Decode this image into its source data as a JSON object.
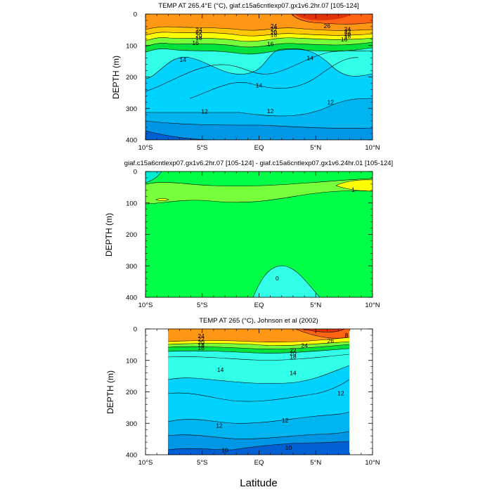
{
  "chart_data": [
    {
      "type": "contour",
      "title": "TEMP AT 265.4°E (°C), giaf.c15a6cntlexp07.gx1v6.2hr.07 [105-124]",
      "xlabel": "",
      "ylabel": "DEPTH (m)",
      "xlim": [
        -10,
        10
      ],
      "ylim": [
        0,
        400
      ],
      "xticks": [
        "10°S",
        "5°S",
        "EQ",
        "5°N",
        "10°N"
      ],
      "yticks": [
        "0",
        "100",
        "200",
        "300",
        "400"
      ],
      "data_xlim": [
        -10,
        10
      ],
      "contour_labels": [
        {
          "text": "24",
          "x": 1.3,
          "y": 38
        },
        {
          "text": "22",
          "x": 1.3,
          "y": 48
        },
        {
          "text": "20",
          "x": 1.3,
          "y": 58
        },
        {
          "text": "18",
          "x": 1.3,
          "y": 66
        },
        {
          "text": "24",
          "x": -5.3,
          "y": 50
        },
        {
          "text": "22",
          "x": -5.3,
          "y": 58
        },
        {
          "text": "20",
          "x": -5.3,
          "y": 68
        },
        {
          "text": "18",
          "x": -5.3,
          "y": 76
        },
        {
          "text": "16",
          "x": -5.6,
          "y": 92
        },
        {
          "text": "16",
          "x": 1.0,
          "y": 95
        },
        {
          "text": "26",
          "x": 6.0,
          "y": 38
        },
        {
          "text": "24",
          "x": 7.8,
          "y": 48
        },
        {
          "text": "22",
          "x": 7.8,
          "y": 56
        },
        {
          "text": "20",
          "x": 7.8,
          "y": 64
        },
        {
          "text": "18",
          "x": 7.8,
          "y": 70
        },
        {
          "text": "16",
          "x": 7.5,
          "y": 80
        },
        {
          "text": "14",
          "x": -6.7,
          "y": 145
        },
        {
          "text": "14",
          "x": 4.5,
          "y": 140
        },
        {
          "text": "14",
          "x": 0.0,
          "y": 227
        },
        {
          "text": "12",
          "x": -4.8,
          "y": 310
        },
        {
          "text": "12",
          "x": 1.0,
          "y": 308
        },
        {
          "text": "12",
          "x": 6.3,
          "y": 280
        }
      ]
    },
    {
      "type": "contour",
      "title": "giaf.c15a6cntlexp07.gx1v6.2hr.07 [105-124] - giaf.c15a6cntlexp07.gx1v6.24hr.01 [105-124]",
      "xlabel": "",
      "ylabel": "DEPTH (m)",
      "xlim": [
        -10,
        10
      ],
      "ylim": [
        0,
        400
      ],
      "xticks": [
        "10°S",
        "5°S",
        "EQ",
        "5°N",
        "10°N"
      ],
      "yticks": [
        "0",
        "100",
        "200",
        "300",
        "400"
      ],
      "data_xlim": [
        -10,
        10
      ],
      "contour_labels": [
        {
          "text": "0",
          "x": 1.6,
          "y": 340
        },
        {
          "text": "1",
          "x": 8.3,
          "y": 58
        }
      ]
    },
    {
      "type": "contour",
      "title": "TEMP AT 265 (°C), Johnson et al (2002)",
      "xlabel": "Latitude",
      "ylabel": "DEPTH (m)",
      "xlim": [
        -10,
        10
      ],
      "ylim": [
        0,
        400
      ],
      "xticks": [
        "10°S",
        "5°S",
        "EQ",
        "5°N",
        "10°N"
      ],
      "yticks": [
        "0",
        "100",
        "200",
        "300",
        "400"
      ],
      "data_xlim": [
        -8,
        8
      ],
      "contour_labels": [
        {
          "text": "24",
          "x": -5.1,
          "y": 22
        },
        {
          "text": "22",
          "x": -5.1,
          "y": 32
        },
        {
          "text": "20",
          "x": -5.1,
          "y": 42
        },
        {
          "text": "18",
          "x": -5.1,
          "y": 51
        },
        {
          "text": "16",
          "x": -5.1,
          "y": 60
        },
        {
          "text": "22",
          "x": 3.0,
          "y": 68
        },
        {
          "text": "20",
          "x": 3.0,
          "y": 77
        },
        {
          "text": "18",
          "x": 3.0,
          "y": 88
        },
        {
          "text": "24",
          "x": 4.0,
          "y": 52
        },
        {
          "text": "26",
          "x": 6.3,
          "y": 38
        },
        {
          "text": "8",
          "x": 7.7,
          "y": 20
        },
        {
          "text": "14",
          "x": -3.4,
          "y": 130
        },
        {
          "text": "14",
          "x": 3.0,
          "y": 140
        },
        {
          "text": "12",
          "x": -3.5,
          "y": 307
        },
        {
          "text": "12",
          "x": 2.3,
          "y": 290
        },
        {
          "text": "12",
          "x": 7.2,
          "y": 205
        },
        {
          "text": "10",
          "x": -3.0,
          "y": 385
        },
        {
          "text": "10",
          "x": 2.6,
          "y": 378
        }
      ]
    }
  ],
  "colors": {
    "background": "#ffffff",
    "axis": "#000000"
  }
}
